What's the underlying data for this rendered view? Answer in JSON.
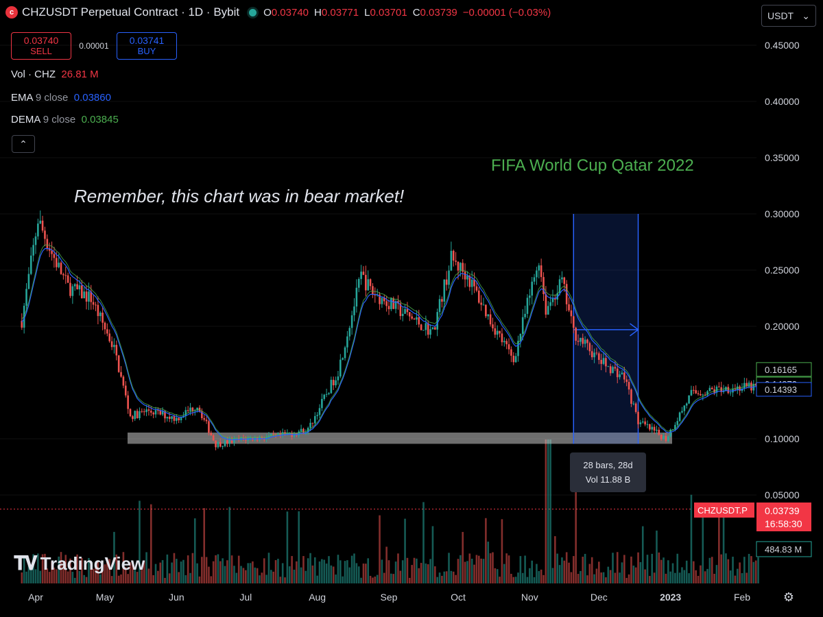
{
  "header": {
    "icon": "chiliz-logo-icon",
    "title": "CHZUSDT Perpetual Contract · 1D · Bybit",
    "ohlc": [
      {
        "label": "O",
        "value": "0.03740"
      },
      {
        "label": "H",
        "value": "0.03771"
      },
      {
        "label": "L",
        "value": "0.03701"
      },
      {
        "label": "C",
        "value": "0.03739"
      }
    ],
    "change": "−0.00001 (−0.03%)"
  },
  "trade": {
    "sell_price": "0.03740",
    "sell_label": "SELL",
    "spread": "0.00001",
    "buy_price": "0.03741",
    "buy_label": "BUY"
  },
  "indicators": {
    "vol": {
      "name": "Vol · CHZ",
      "value": "26.81 M"
    },
    "ema": {
      "name": "EMA",
      "params": "9 close",
      "value": "0.03860"
    },
    "dema": {
      "name": "DEMA",
      "params": "9 close",
      "value": "0.03845"
    }
  },
  "currency_select": "USDT",
  "annotations": {
    "bear_note": "Remember, this chart was in bear market!",
    "fifa_note": "FIFA World Cup Qatar 2022",
    "measure_bars": "28 bars, 28d",
    "measure_vol": "Vol 11.88 B"
  },
  "price_axis": {
    "ticks": [
      "0.45000",
      "0.40000",
      "0.35000",
      "0.30000",
      "0.25000",
      "0.20000",
      "0.10000",
      "0.05000"
    ],
    "badges": [
      {
        "text": "0.16165",
        "value": 0.16165,
        "color": "#4caf50"
      },
      {
        "text": "0.14873",
        "value": 0.14873,
        "color": "#4caf50"
      },
      {
        "text": "0.14393",
        "value": 0.14393,
        "color": "#2962ff"
      }
    ],
    "last_price_label": "CHZUSDT.P",
    "last_price": "0.03739",
    "countdown": "16:58:30",
    "volume_badge": "484.83 M"
  },
  "time_axis": [
    "Apr",
    "May",
    "Jun",
    "Jul",
    "Aug",
    "Sep",
    "Oct",
    "Nov",
    "Dec",
    "2023",
    "Feb"
  ],
  "logo": {
    "mark": "TV",
    "text": "TradingView"
  },
  "colors": {
    "up": "#26a69a",
    "down": "#ef5350",
    "ema": "#2962ff",
    "dema": "#4caf50",
    "accent_box": "#2962ff",
    "last_price": "#f23645"
  },
  "chart_data": {
    "type": "candlestick",
    "title": "CHZUSDT Perpetual Contract · 1D · Bybit",
    "y_range": [
      0.025,
      0.47
    ],
    "x_months": [
      "Apr",
      "May",
      "Jun",
      "Jul",
      "Aug",
      "Sep",
      "Oct",
      "Nov",
      "Dec",
      "2023",
      "Feb"
    ],
    "close_path": [
      {
        "date": "2022-03-26",
        "close": 0.205
      },
      {
        "date": "2022-04-02",
        "close": 0.295
      },
      {
        "date": "2022-04-08",
        "close": 0.265
      },
      {
        "date": "2022-04-15",
        "close": 0.235
      },
      {
        "date": "2022-04-25",
        "close": 0.225
      },
      {
        "date": "2022-05-05",
        "close": 0.18
      },
      {
        "date": "2022-05-12",
        "close": 0.12
      },
      {
        "date": "2022-05-20",
        "close": 0.125
      },
      {
        "date": "2022-06-01",
        "close": 0.118
      },
      {
        "date": "2022-06-10",
        "close": 0.13
      },
      {
        "date": "2022-06-18",
        "close": 0.095
      },
      {
        "date": "2022-07-01",
        "close": 0.1
      },
      {
        "date": "2022-07-15",
        "close": 0.102
      },
      {
        "date": "2022-07-28",
        "close": 0.108
      },
      {
        "date": "2022-08-10",
        "close": 0.16
      },
      {
        "date": "2022-08-20",
        "close": 0.245
      },
      {
        "date": "2022-08-25",
        "close": 0.23
      },
      {
        "date": "2022-09-05",
        "close": 0.215
      },
      {
        "date": "2022-09-20",
        "close": 0.195
      },
      {
        "date": "2022-09-28",
        "close": 0.26
      },
      {
        "date": "2022-10-05",
        "close": 0.245
      },
      {
        "date": "2022-10-15",
        "close": 0.205
      },
      {
        "date": "2022-10-25",
        "close": 0.17
      },
      {
        "date": "2022-11-05",
        "close": 0.26
      },
      {
        "date": "2022-11-08",
        "close": 0.215
      },
      {
        "date": "2022-11-15",
        "close": 0.24
      },
      {
        "date": "2022-11-20",
        "close": 0.195
      },
      {
        "date": "2022-12-01",
        "close": 0.17
      },
      {
        "date": "2022-12-12",
        "close": 0.155
      },
      {
        "date": "2022-12-18",
        "close": 0.115
      },
      {
        "date": "2022-12-30",
        "close": 0.1
      },
      {
        "date": "2023-01-10",
        "close": 0.14
      },
      {
        "date": "2023-01-25",
        "close": 0.145
      },
      {
        "date": "2023-02-08",
        "close": 0.146
      }
    ],
    "support_zone": [
      0.0955,
      0.1055
    ],
    "highlight_range": {
      "start": "2022-11-20",
      "end": "2022-12-18",
      "top": 0.3,
      "bottom": 0.0955
    },
    "last_price": 0.03739
  }
}
